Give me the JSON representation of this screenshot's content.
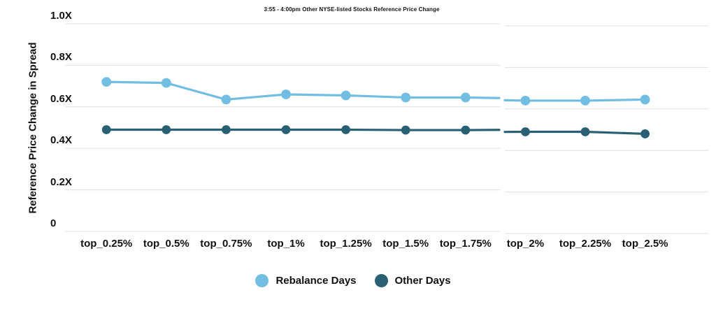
{
  "title": "3:55 - 4:00pm Other NYSE-listed Stocks Reference Price Change",
  "colors": {
    "background": "#FFFFFF",
    "grid": "#E0E0E0",
    "text": "#111111",
    "rebalance_days": "#72BEE2",
    "other_days": "#2A6074"
  },
  "chart_data": {
    "type": "line",
    "title": "3:55 - 4:00pm Other NYSE-listed Stocks Reference Price Change",
    "ylabel": "Reference Price Change in Spread",
    "xlabel": "",
    "categories": [
      "top_0.25%",
      "top_0.5%",
      "top_0.75%",
      "top_1%",
      "top_1.25%",
      "top_1.5%",
      "top_1.75%",
      "top_2%",
      "top_2.25%",
      "top_2.5%"
    ],
    "y_tick_values": [
      1.0,
      0.8,
      0.6,
      0.4,
      0.2,
      0
    ],
    "y_tick_labels": [
      "1.0X",
      "0.8X",
      "0.6X",
      "0.4X",
      "0.2X",
      "0"
    ],
    "ylim": [
      0,
      1.0
    ],
    "grid": "horizontal",
    "legend_position": "bottom",
    "series": [
      {
        "name": "Rebalance Days",
        "color": "#72BEE2",
        "values": [
          0.72,
          0.715,
          0.635,
          0.66,
          0.655,
          0.645,
          0.645,
          0.64,
          0.64,
          0.645
        ]
      },
      {
        "name": "Other Days",
        "color": "#2A6074",
        "values": [
          0.49,
          0.49,
          0.49,
          0.49,
          0.49,
          0.488,
          0.488,
          0.49,
          0.49,
          0.48
        ]
      }
    ]
  }
}
